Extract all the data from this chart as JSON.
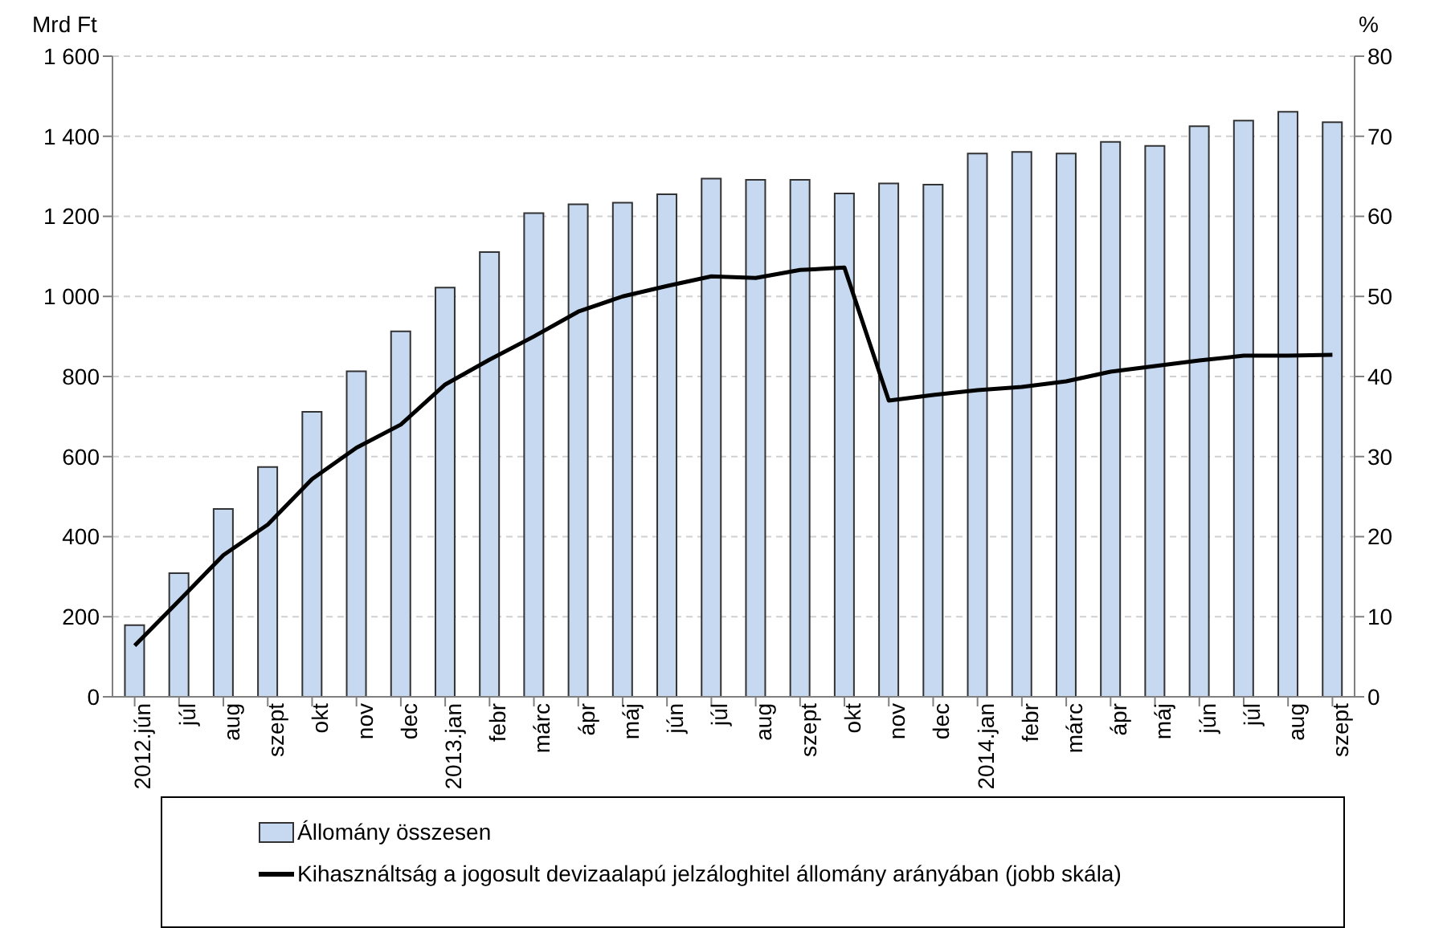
{
  "chart_data": {
    "type": "bar",
    "ylabel": "Mrd Ft",
    "y2label": "%",
    "categories": [
      "2012.jún",
      "júl",
      "aug",
      "szept",
      "okt",
      "nov",
      "dec",
      "2013.jan",
      "febr",
      "márc",
      "ápr",
      "máj",
      "jún",
      "júl",
      "aug",
      "szept",
      "okt",
      "nov",
      "dec",
      "2014.jan",
      "febr",
      "márc",
      "ápr",
      "máj",
      "jún",
      "júl",
      "aug",
      "szept"
    ],
    "series": [
      {
        "name": "Állomány összesen",
        "color": "#c6d9f0",
        "values": [
          179,
          309,
          469,
          574,
          712,
          813,
          913,
          1022,
          1111,
          1208,
          1230,
          1234,
          1255,
          1294,
          1291,
          1291,
          1257,
          1282,
          1279,
          1357,
          1361,
          1357,
          1386,
          1376,
          1425,
          1439,
          1461,
          1435
        ]
      },
      {
        "name": "Kihasználtság a jogosult devizaalapú jelzáloghitel állomány arányában (jobb skála)",
        "type": "line",
        "axis": "y2",
        "color": "#000000",
        "values": [
          6.4,
          12.0,
          17.7,
          21.5,
          27.2,
          31.1,
          34.0,
          39.0,
          42.1,
          45.0,
          48.1,
          50.0,
          51.3,
          52.5,
          52.3,
          53.3,
          53.6,
          37.0,
          37.7,
          38.3,
          38.7,
          39.4,
          40.6,
          41.3,
          42.0,
          42.6,
          42.6,
          42.7
        ]
      }
    ],
    "ylim": [
      0,
      1600
    ],
    "yticks": [
      0,
      {
        "value": 200,
        "label": "200"
      },
      {
        "value": 400,
        "label": "400"
      },
      {
        "value": 600,
        "label": "600"
      },
      {
        "value": 800,
        "label": "800"
      },
      {
        "value": 1000,
        "label": "1 000"
      },
      {
        "value": 1200,
        "label": "1 200"
      },
      {
        "value": 1400,
        "label": "1 400"
      },
      {
        "value": 1600,
        "label": "1 600"
      }
    ],
    "y2lim": [
      0,
      80
    ],
    "y2ticks": [
      0,
      10,
      20,
      30,
      40,
      50,
      60,
      70,
      80
    ],
    "grid": "y",
    "legend": "bottom",
    "marker": "none",
    "line_style": "solid"
  }
}
